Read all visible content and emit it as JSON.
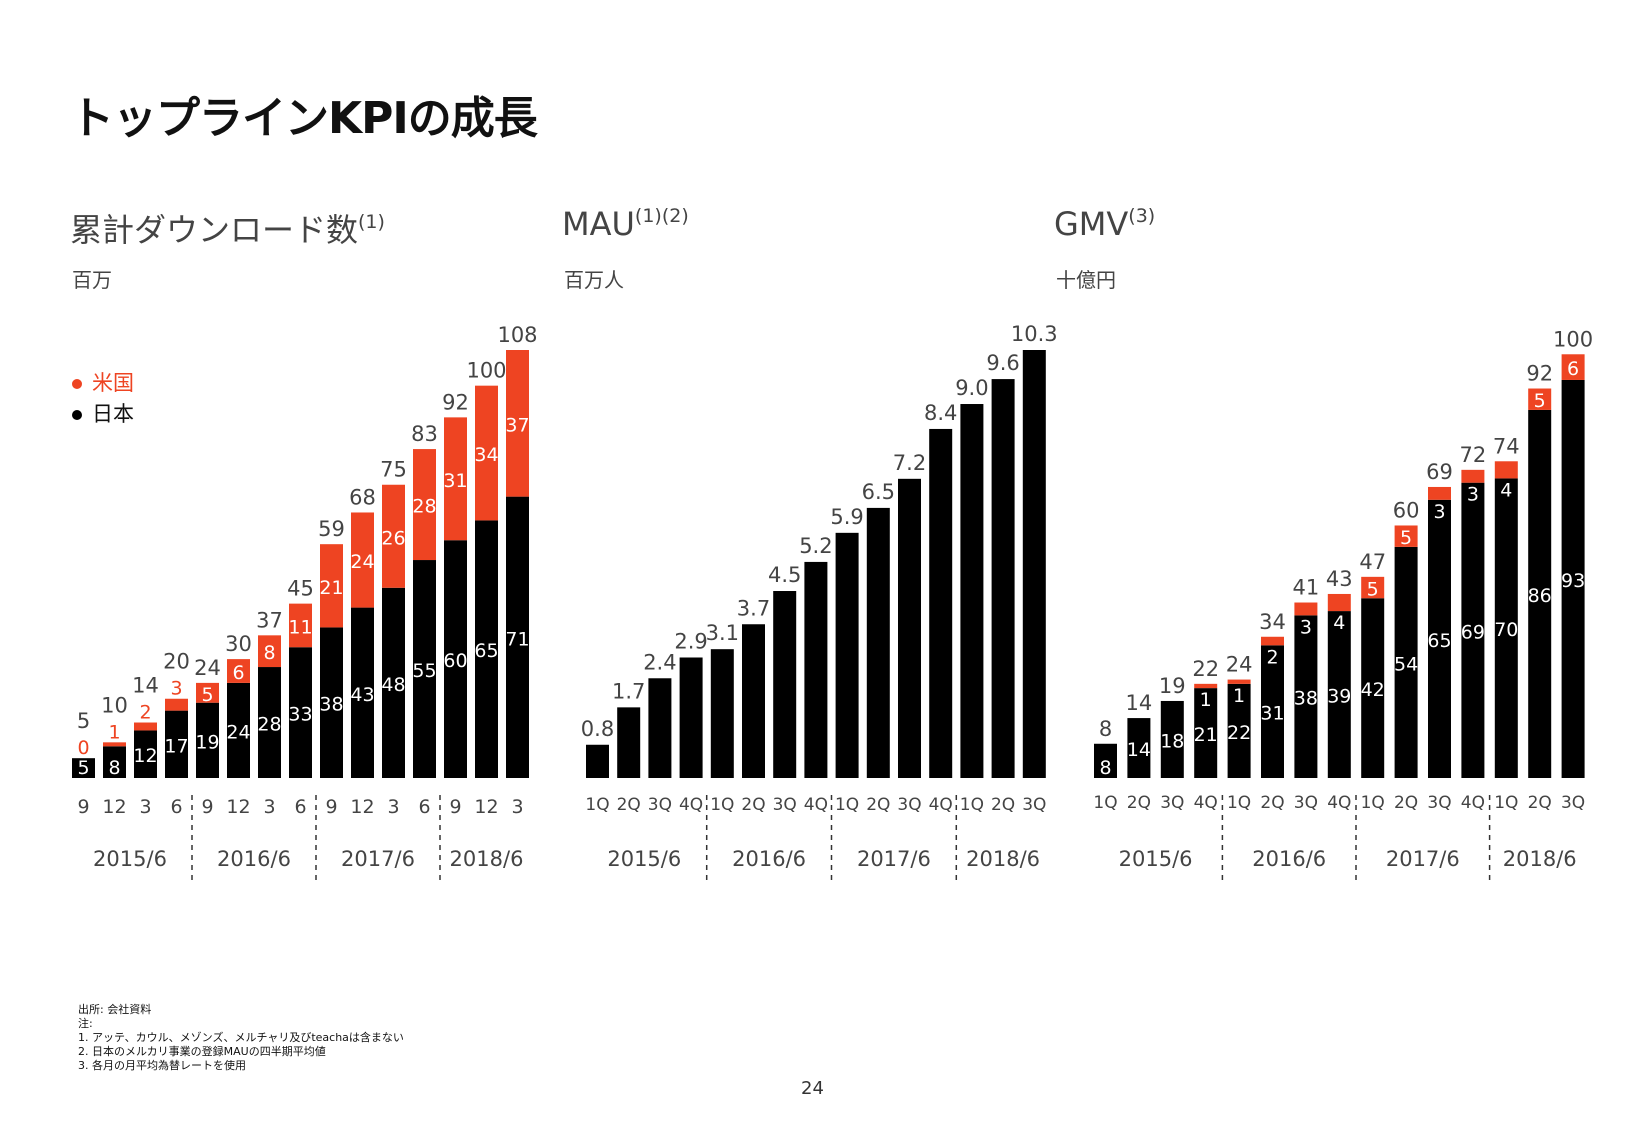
{
  "page": {
    "title": "トップラインKPIの成長",
    "page_number": "24"
  },
  "colors": {
    "japan": "#000000",
    "us": "#EE4422",
    "text": "#444444"
  },
  "legend": {
    "us": "米国",
    "japan": "日本"
  },
  "footnotes": [
    "出所: 会社資料",
    "注:",
    "1.  アッテ、カウル、メゾンズ、メルチャリ及びteachaは含まない",
    "2.  日本のメルカリ事業の登録MAUの四半期平均値",
    "3.  各月の月平均為替レートを使用"
  ],
  "chart_data": [
    {
      "type": "bar",
      "stacked": true,
      "title": "累計ダウンロード数",
      "title_note": "(1)",
      "unit": "百万",
      "categories": [
        "9",
        "12",
        "3",
        "6",
        "9",
        "12",
        "3",
        "6",
        "9",
        "12",
        "3",
        "6",
        "9",
        "12",
        "3"
      ],
      "groups": [
        "2015/6",
        "2016/6",
        "2017/6",
        "2018/6"
      ],
      "group_sizes": [
        4,
        4,
        4,
        3
      ],
      "series": [
        {
          "name": "日本",
          "values": [
            5,
            8,
            12,
            17,
            19,
            24,
            28,
            33,
            38,
            43,
            48,
            55,
            60,
            65,
            71
          ]
        },
        {
          "name": "米国",
          "values": [
            0,
            1,
            2,
            3,
            5,
            6,
            8,
            11,
            21,
            24,
            26,
            28,
            31,
            34,
            37
          ]
        }
      ],
      "totals": [
        5,
        10,
        14,
        20,
        24,
        30,
        37,
        45,
        59,
        68,
        75,
        83,
        92,
        100,
        108
      ],
      "ylim": [
        0,
        108
      ]
    },
    {
      "type": "bar",
      "title": "MAU",
      "title_note": "(1)(2)",
      "unit": "百万人",
      "categories": [
        "1Q",
        "2Q",
        "3Q",
        "4Q",
        "1Q",
        "2Q",
        "3Q",
        "4Q",
        "1Q",
        "2Q",
        "3Q",
        "4Q",
        "1Q",
        "2Q",
        "3Q"
      ],
      "groups": [
        "2015/6",
        "2016/6",
        "2017/6",
        "2018/6"
      ],
      "group_sizes": [
        4,
        4,
        4,
        3
      ],
      "values": [
        0.8,
        1.7,
        2.4,
        2.9,
        3.1,
        3.7,
        4.5,
        5.2,
        5.9,
        6.5,
        7.2,
        8.4,
        9.0,
        9.6,
        10.3
      ],
      "value_labels": [
        "0.8",
        "1.7",
        "2.4",
        "2.9",
        "3.1",
        "3.7",
        "4.5",
        "5.2",
        "5.9",
        "6.5",
        "7.2",
        "8.4",
        "9.0",
        "9.6",
        "10.3"
      ],
      "ylim": [
        0,
        10.3
      ]
    },
    {
      "type": "bar",
      "stacked": true,
      "title": "GMV",
      "title_note": "(3)",
      "unit": "十億円",
      "categories": [
        "1Q",
        "2Q",
        "3Q",
        "4Q",
        "1Q",
        "2Q",
        "3Q",
        "4Q",
        "1Q",
        "2Q",
        "3Q",
        "4Q",
        "1Q",
        "2Q",
        "3Q"
      ],
      "groups": [
        "2015/6",
        "2016/6",
        "2017/6",
        "2018/6"
      ],
      "group_sizes": [
        4,
        4,
        4,
        3
      ],
      "series": [
        {
          "name": "日本",
          "values": [
            8,
            14,
            18,
            21,
            22,
            31,
            38,
            39,
            42,
            54,
            65,
            69,
            70,
            86,
            93
          ]
        },
        {
          "name": "米国",
          "values": [
            0,
            0,
            0,
            1,
            1,
            2,
            3,
            4,
            5,
            5,
            3,
            3,
            4,
            5,
            6
          ]
        }
      ],
      "us_value_labels": [
        "",
        "",
        "",
        "1",
        "1",
        "2",
        "3",
        "4",
        "5",
        "5",
        "3",
        "3",
        "4",
        "5",
        "6"
      ],
      "totals": [
        8,
        14,
        19,
        22,
        24,
        34,
        41,
        43,
        47,
        60,
        69,
        72,
        74,
        92,
        100
      ],
      "ylim": [
        0,
        100
      ]
    }
  ]
}
